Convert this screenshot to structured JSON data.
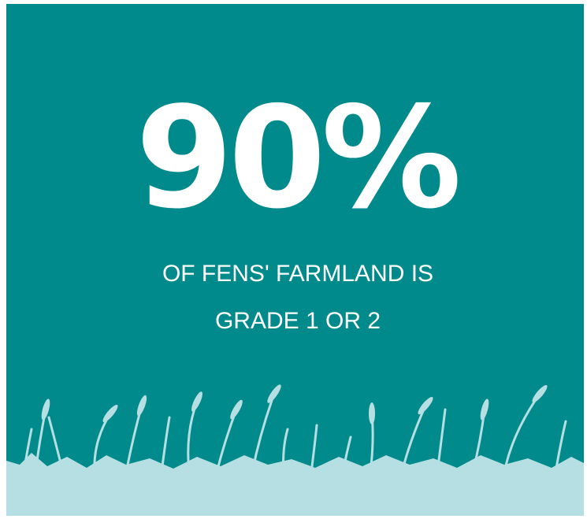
{
  "stat": "90%",
  "caption": [
    "OF FENS' FARMLAND IS",
    "GRADE 1 OR 2"
  ]
}
